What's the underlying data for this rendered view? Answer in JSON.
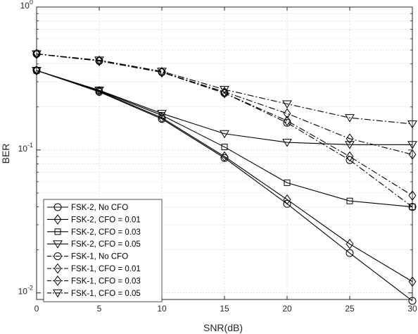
{
  "chart_data": {
    "type": "line",
    "xlabel": "SNR(dB)",
    "ylabel": "BER",
    "xlim": [
      0,
      30
    ],
    "ylim": [
      0.009,
      1
    ],
    "yscale": "log",
    "grid": true,
    "legend_position": "bottom-left",
    "x": [
      0,
      5,
      10,
      15,
      20,
      25,
      30
    ],
    "x_ticks": [
      {
        "value": 0,
        "label": "0"
      },
      {
        "value": 5,
        "label": "5"
      },
      {
        "value": 10,
        "label": "10"
      },
      {
        "value": 15,
        "label": "15"
      },
      {
        "value": 20,
        "label": "20"
      },
      {
        "value": 25,
        "label": "25"
      },
      {
        "value": 30,
        "label": "30"
      }
    ],
    "y_ticks": [
      {
        "value": 1,
        "base": "10",
        "exp": "0"
      },
      {
        "value": 0.1,
        "base": "10",
        "exp": "-1"
      },
      {
        "value": 0.01,
        "base": "10",
        "exp": "-2"
      }
    ],
    "series": [
      {
        "name": "FSK-2, No CFO",
        "marker": "circle",
        "dash": "solid",
        "values": [
          0.36,
          0.255,
          0.165,
          0.088,
          0.042,
          0.019,
          0.0088
        ]
      },
      {
        "name": "FSK-2, CFO = 0.01",
        "marker": "diamond",
        "dash": "solid",
        "values": [
          0.36,
          0.258,
          0.168,
          0.09,
          0.045,
          0.022,
          0.012
        ]
      },
      {
        "name": "FSK-2, CFO = 0.03",
        "marker": "square",
        "dash": "solid",
        "values": [
          0.36,
          0.26,
          0.175,
          0.105,
          0.059,
          0.044,
          0.04
        ]
      },
      {
        "name": "FSK-2, CFO = 0.05",
        "marker": "triangle-down",
        "dash": "solid",
        "values": [
          0.36,
          0.262,
          0.18,
          0.13,
          0.113,
          0.109,
          0.109
        ]
      },
      {
        "name": "FSK-1,  No CFO",
        "marker": "circle",
        "dash": "dashdot",
        "values": [
          0.47,
          0.42,
          0.35,
          0.25,
          0.155,
          0.085,
          0.04
        ]
      },
      {
        "name": "FSK-1, CFO = 0.01",
        "marker": "diamond",
        "dash": "dashdot",
        "values": [
          0.47,
          0.42,
          0.35,
          0.25,
          0.16,
          0.09,
          0.048
        ]
      },
      {
        "name": "FSK-1, CFO = 0.03",
        "marker": "diamond",
        "dash": "dashdot",
        "values": [
          0.47,
          0.42,
          0.35,
          0.255,
          0.18,
          0.12,
          0.093
        ]
      },
      {
        "name": "FSK-1, CFO = 0.05",
        "marker": "triangle-down",
        "dash": "dashdot",
        "values": [
          0.47,
          0.425,
          0.355,
          0.265,
          0.21,
          0.168,
          0.152
        ]
      }
    ],
    "colors": {
      "line": "#000000",
      "grid": "#d9d9d9",
      "axis": "#262626",
      "background": "#ffffff"
    }
  }
}
